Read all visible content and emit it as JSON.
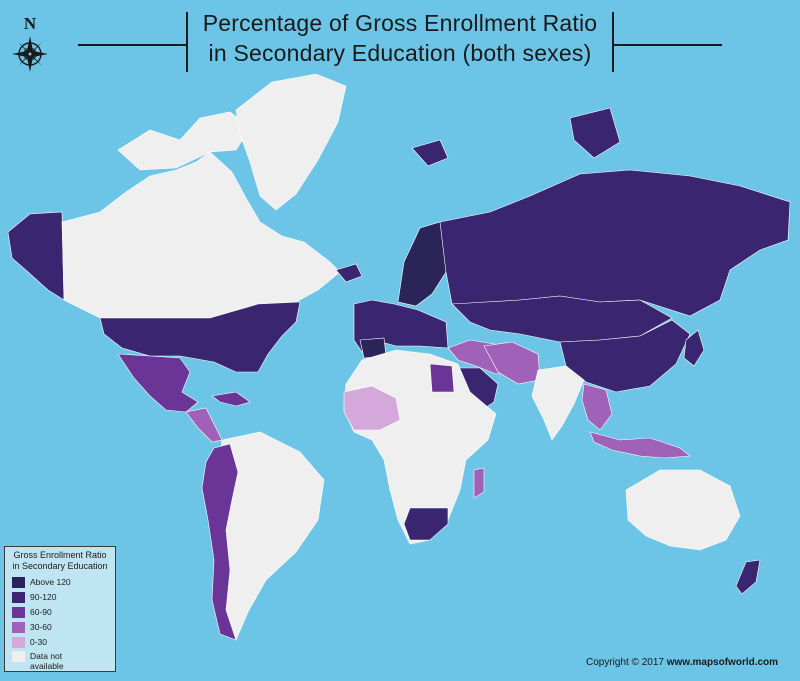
{
  "title": {
    "line1": "Percentage of Gross Enrollment Ratio",
    "line2": "in Secondary Education (both sexes)"
  },
  "compass": {
    "label": "N",
    "icon": "compass-rose-icon"
  },
  "legend": {
    "title_line1": "Gross Enrollment Ratio",
    "title_line2": "in Secondary Education",
    "items": [
      {
        "label": "Above 120",
        "color": "#2A2458"
      },
      {
        "label": "90-120",
        "color": "#3A2670"
      },
      {
        "label": "60-90",
        "color": "#6A3596"
      },
      {
        "label": "30-60",
        "color": "#A061B8"
      },
      {
        "label": "0-30",
        "color": "#D5A8DB"
      },
      {
        "label": "Data not",
        "label2": "available",
        "color": "#EFEFEF"
      }
    ]
  },
  "copyright": {
    "text": "Copyright © 2017",
    "site": "www.mapsofworld.com"
  },
  "colors": {
    "ocean": "#6CC5E6",
    "no_data": "#EFEFEF"
  }
}
